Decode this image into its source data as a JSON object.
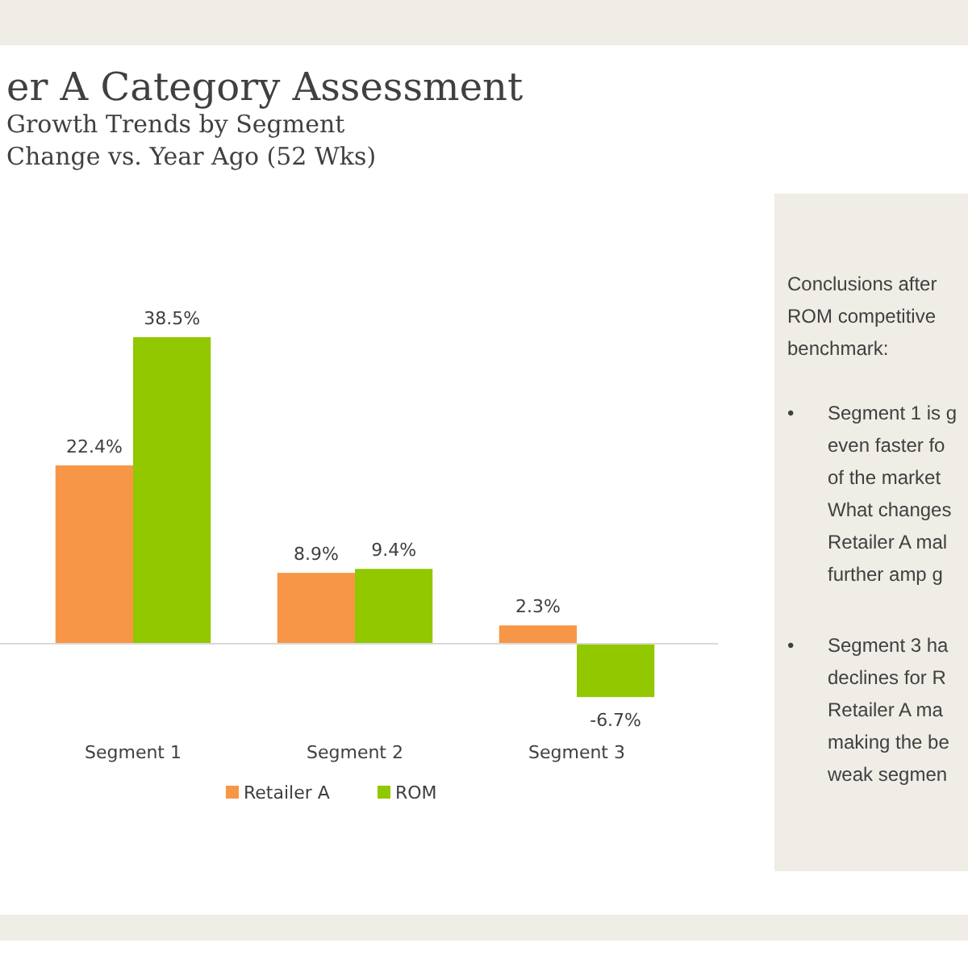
{
  "chart_data": [
    {
      "type": "bar",
      "title": "er A Category Assessment",
      "subtitle": "Growth Trends by Segment\nChange vs. Year Ago (52 Wks)",
      "categories": [
        "Segment 1",
        "Segment 2",
        "Segment 3"
      ],
      "series": [
        {
          "name": "Retailer A",
          "color": "#f79646",
          "values": [
            22.4,
            8.9,
            2.3
          ],
          "value_labels": [
            "22.4%",
            "8.9%",
            "2.3%"
          ]
        },
        {
          "name": "ROM",
          "color": "#92c800",
          "values": [
            38.5,
            9.4,
            -6.7
          ],
          "value_labels": [
            "38.5%",
            "9.4%",
            "-6.7%"
          ]
        }
      ],
      "legend": "bottom"
    },
    {
      "type": "other",
      "annotations": [
        "Conclusions after",
        "ROM competitive",
        "benchmark:",
        "•\tSegment 1 is g",
        "even faster fo",
        "of the market",
        "What changes",
        "Retailer A mal",
        "further amp g",
        "•\tSegment 3 ha",
        "declines for R",
        "Retailer A  ma",
        "making the be",
        "weak segmen"
      ]
    }
  ]
}
